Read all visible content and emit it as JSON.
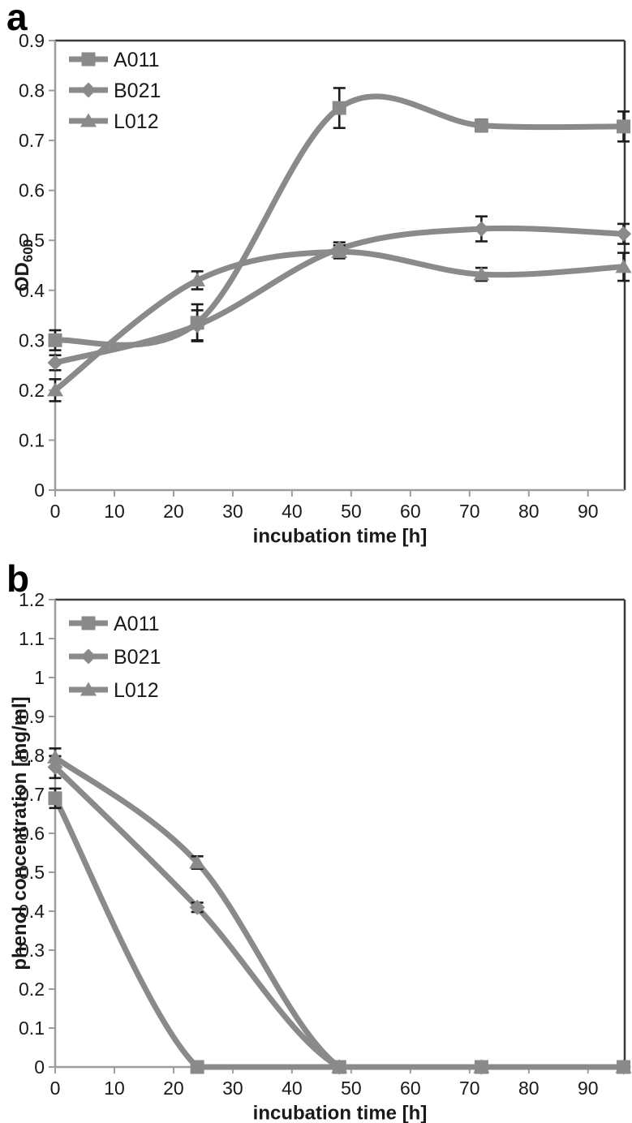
{
  "style": {
    "background": "#ffffff",
    "series_color": "#8a8a8a",
    "error_bar_color": "#1c1c1c",
    "axis_color": "#9d9d9d",
    "border_color": "#3a3a3a",
    "text_color": "#1a1a1a"
  },
  "chart_data": [
    {
      "id": "a",
      "panel_label": "a",
      "type": "line",
      "grid": false,
      "legend_position": "top-left",
      "xlabel": "incubation time [h]",
      "ylabel": "OD",
      "ylabel_sub": "600",
      "xlim": [
        0,
        96.2
      ],
      "ylim": [
        0,
        0.9
      ],
      "x_ticks": [
        "0",
        "10",
        "20",
        "30",
        "40",
        "50",
        "60",
        "70",
        "80",
        "90"
      ],
      "y_ticks": [
        "0",
        "0.1",
        "0.2",
        "0.3",
        "0.4",
        "0.5",
        "0.6",
        "0.7",
        "0.8",
        "0.9"
      ],
      "x": [
        0,
        24,
        48,
        72,
        96
      ],
      "series": [
        {
          "name": "A011",
          "marker": "square",
          "values": [
            0.3,
            0.335,
            0.765,
            0.73,
            0.728
          ],
          "errors": [
            0.02,
            0.037,
            0.04,
            0.012,
            0.03
          ]
        },
        {
          "name": "B021",
          "marker": "diamond",
          "values": [
            0.255,
            0.33,
            0.483,
            0.523,
            0.513
          ],
          "errors": [
            0.015,
            0.03,
            0.013,
            0.025,
            0.02
          ]
        },
        {
          "name": "L012",
          "marker": "triangle",
          "values": [
            0.2,
            0.42,
            0.477,
            0.432,
            0.447
          ],
          "errors": [
            0.022,
            0.018,
            0.013,
            0.013,
            0.028
          ]
        }
      ]
    },
    {
      "id": "b",
      "panel_label": "b",
      "type": "line",
      "grid": false,
      "legend_position": "top-left",
      "xlabel": "incubation time [h]",
      "ylabel": "phenol concentration [mg/ml]",
      "ylabel_sub": "",
      "xlim": [
        0,
        96.2
      ],
      "ylim": [
        0,
        1.2
      ],
      "x_ticks": [
        "0",
        "10",
        "20",
        "30",
        "40",
        "50",
        "60",
        "70",
        "80",
        "90"
      ],
      "y_ticks": [
        "0",
        "0.1",
        "0.2",
        "0.3",
        "0.4",
        "0.5",
        "0.6",
        "0.7",
        "0.8",
        "0.9",
        "1",
        "1.1",
        "1.2"
      ],
      "x": [
        0,
        24,
        48,
        72,
        96
      ],
      "series": [
        {
          "name": "A011",
          "marker": "square",
          "values": [
            0.69,
            0.0,
            0.0,
            0.0,
            0.0
          ],
          "errors": [
            0.025,
            0.008,
            0.008,
            0,
            0
          ]
        },
        {
          "name": "B021",
          "marker": "diamond",
          "values": [
            0.77,
            0.41,
            0.0,
            0.0,
            0.0
          ],
          "errors": [
            0.028,
            0.012,
            0.008,
            0,
            0
          ]
        },
        {
          "name": "L012",
          "marker": "triangle",
          "values": [
            0.795,
            0.525,
            0.0,
            0.0,
            0.0
          ],
          "errors": [
            0.023,
            0.016,
            0.008,
            0,
            0
          ]
        }
      ]
    }
  ]
}
